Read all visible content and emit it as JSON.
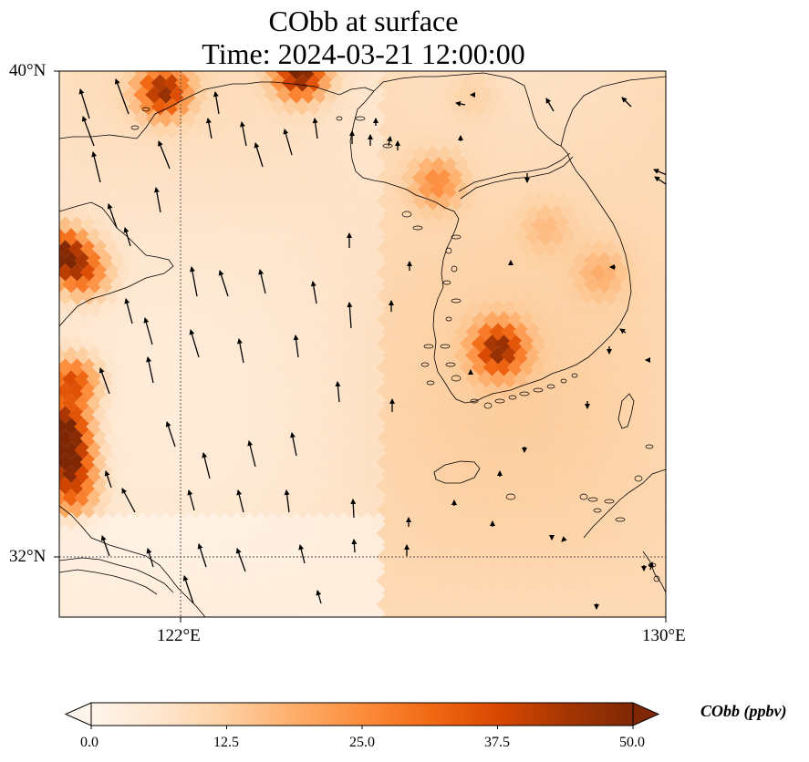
{
  "title": {
    "line1": "CObb at surface",
    "line2": "Time: 2024-03-21 12:00:00"
  },
  "map": {
    "lat_range": [
      31,
      40
    ],
    "lon_range": [
      120,
      130
    ],
    "lat_labels": [
      "40°N",
      "32°N"
    ],
    "lon_labels": [
      "122°E",
      "130°E"
    ],
    "gridlines": {
      "lat": 32,
      "lon": 122
    },
    "variable": "CObb",
    "units": "ppbv"
  },
  "colorbar": {
    "label": "CObb (ppbv)",
    "ticks": [
      "0.0",
      "12.5",
      "25.0",
      "37.5",
      "50.0"
    ],
    "range": [
      0,
      50
    ],
    "colormap": [
      "#fff5eb",
      "#fee6ce",
      "#fdd0a2",
      "#fdae6b",
      "#fd8d3c",
      "#f16913",
      "#d94801",
      "#a63603",
      "#7f2704"
    ],
    "extend": "both"
  }
}
